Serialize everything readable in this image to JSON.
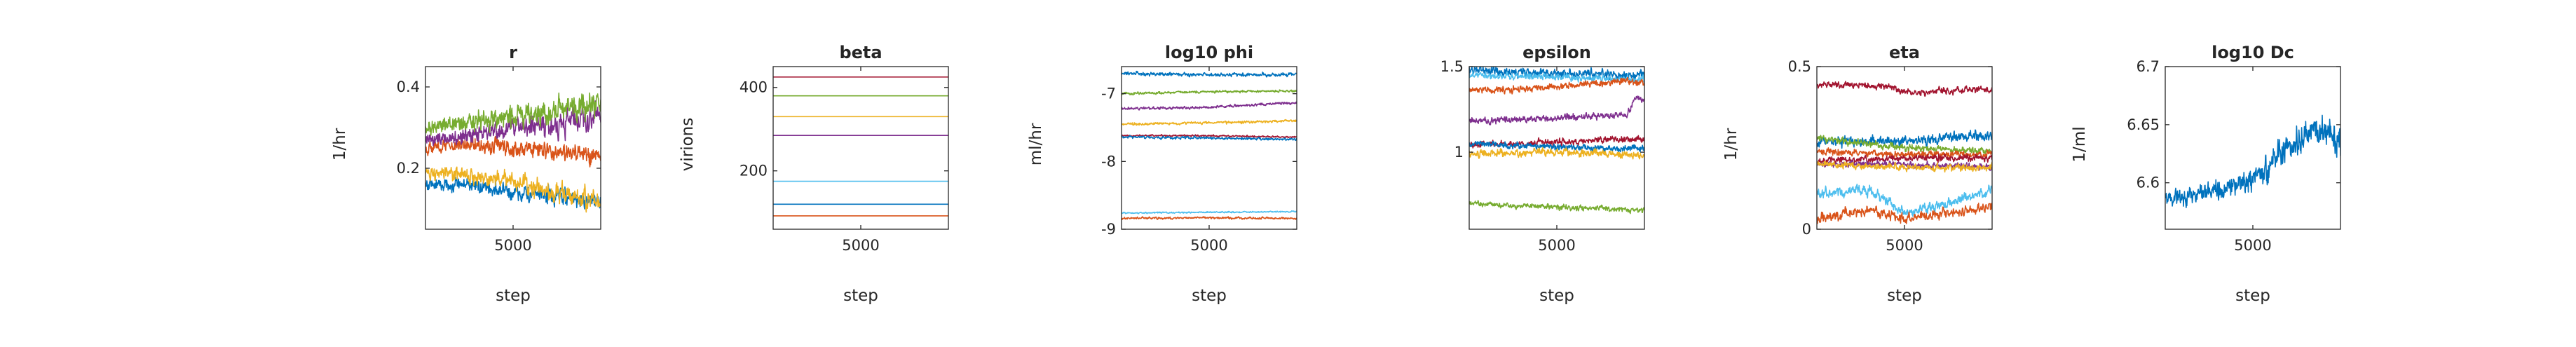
{
  "chart_data": [
    {
      "type": "line",
      "title": "r",
      "xlabel": "step",
      "ylabel": "1/hr",
      "xlim": [
        1,
        10000
      ],
      "ylim": [
        0.05,
        0.45
      ],
      "xticks": [
        5000
      ],
      "yticks": [
        0.2,
        0.4
      ],
      "xtick_labels": [
        "5000"
      ],
      "ytick_labels": [
        "0.2",
        "0.4"
      ],
      "series": [
        {
          "color": "#0072BD",
          "x": [
            1,
            2500,
            5000,
            7500,
            10000
          ],
          "values": [
            0.16,
            0.16,
            0.14,
            0.13,
            0.12
          ],
          "noise": 0.012,
          "noise_growth": 0.6
        },
        {
          "color": "#D95319",
          "x": [
            1,
            2500,
            5000,
            7500,
            10000
          ],
          "values": [
            0.25,
            0.26,
            0.25,
            0.24,
            0.23
          ],
          "noise": 0.012,
          "noise_growth": 0.6
        },
        {
          "color": "#EDB120",
          "x": [
            1,
            2500,
            5000,
            7500,
            10000
          ],
          "values": [
            0.19,
            0.18,
            0.17,
            0.14,
            0.12
          ],
          "noise": 0.012,
          "noise_growth": 0.8
        },
        {
          "color": "#7E2F8E",
          "x": [
            1,
            2500,
            5000,
            7500,
            10000
          ],
          "values": [
            0.27,
            0.28,
            0.3,
            0.31,
            0.33
          ],
          "noise": 0.014,
          "noise_growth": 0.8
        },
        {
          "color": "#77AC30",
          "x": [
            1,
            2500,
            5000,
            7500,
            10000
          ],
          "values": [
            0.3,
            0.31,
            0.33,
            0.34,
            0.36
          ],
          "noise": 0.015,
          "noise_growth": 0.8
        }
      ]
    },
    {
      "type": "line",
      "title": "beta",
      "xlabel": "step",
      "ylabel": "virions",
      "xlim": [
        1,
        10000
      ],
      "ylim": [
        60,
        450
      ],
      "xticks": [
        5000
      ],
      "yticks": [
        200,
        400
      ],
      "xtick_labels": [
        "5000"
      ],
      "ytick_labels": [
        "200",
        "400"
      ],
      "series": [
        {
          "color": "#A2142F",
          "x": [
            1,
            10000
          ],
          "values": [
            425,
            425
          ],
          "noise": 0
        },
        {
          "color": "#77AC30",
          "x": [
            1,
            10000
          ],
          "values": [
            380,
            380
          ],
          "noise": 0
        },
        {
          "color": "#EDB120",
          "x": [
            1,
            10000
          ],
          "values": [
            330,
            330
          ],
          "noise": 0
        },
        {
          "color": "#7E2F8E",
          "x": [
            1,
            10000
          ],
          "values": [
            285,
            285
          ],
          "noise": 0
        },
        {
          "color": "#4DBEEE",
          "x": [
            1,
            10000
          ],
          "values": [
            175,
            175
          ],
          "noise": 0
        },
        {
          "color": "#0072BD",
          "x": [
            1,
            10000
          ],
          "values": [
            120,
            120
          ],
          "noise": 0
        },
        {
          "color": "#D95319",
          "x": [
            1,
            10000
          ],
          "values": [
            92,
            92
          ],
          "noise": 0
        }
      ]
    },
    {
      "type": "line",
      "title": "log10 phi",
      "xlabel": "step",
      "ylabel": "ml/hr",
      "xlim": [
        1,
        10000
      ],
      "ylim": [
        -9,
        -6.6
      ],
      "xticks": [
        5000
      ],
      "yticks": [
        -9,
        -8,
        -7
      ],
      "xtick_labels": [
        "5000"
      ],
      "ytick_labels": [
        "-9",
        "-8",
        "-7"
      ],
      "series": [
        {
          "color": "#0072BD",
          "x": [
            1,
            5000,
            10000
          ],
          "values": [
            -6.7,
            -6.72,
            -6.72
          ],
          "noise": 0.02
        },
        {
          "color": "#77AC30",
          "x": [
            1,
            5000,
            10000
          ],
          "values": [
            -7.0,
            -6.97,
            -6.96
          ],
          "noise": 0.015
        },
        {
          "color": "#7E2F8E",
          "x": [
            1,
            5000,
            10000
          ],
          "values": [
            -7.22,
            -7.2,
            -7.13
          ],
          "noise": 0.015
        },
        {
          "color": "#EDB120",
          "x": [
            1,
            5000,
            10000
          ],
          "values": [
            -7.45,
            -7.43,
            -7.4
          ],
          "noise": 0.015
        },
        {
          "color": "#A2142F",
          "x": [
            1,
            5000,
            10000
          ],
          "values": [
            -7.62,
            -7.62,
            -7.64
          ],
          "noise": 0.01
        },
        {
          "color": "#0072BD",
          "x": [
            1,
            5000,
            10000
          ],
          "values": [
            -7.64,
            -7.65,
            -7.68
          ],
          "noise": 0.015
        },
        {
          "color": "#4DBEEE",
          "x": [
            1,
            5000,
            10000
          ],
          "values": [
            -8.76,
            -8.75,
            -8.74
          ],
          "noise": 0.008
        },
        {
          "color": "#D95319",
          "x": [
            1,
            5000,
            10000
          ],
          "values": [
            -8.84,
            -8.83,
            -8.84
          ],
          "noise": 0.012
        }
      ]
    },
    {
      "type": "line",
      "title": "epsilon",
      "xlabel": "step",
      "ylabel": "",
      "xlim": [
        1,
        10000
      ],
      "ylim": [
        0.55,
        1.5
      ],
      "xticks": [
        5000
      ],
      "yticks": [
        1,
        1.5
      ],
      "xtick_labels": [
        "5000"
      ],
      "ytick_labels": [
        "1",
        "1.5"
      ],
      "series": [
        {
          "color": "#0072BD",
          "x": [
            1,
            5000,
            10000
          ],
          "values": [
            1.48,
            1.46,
            1.45
          ],
          "noise": 0.02
        },
        {
          "color": "#4DBEEE",
          "x": [
            1,
            5000,
            10000
          ],
          "values": [
            1.45,
            1.44,
            1.42
          ],
          "noise": 0.015
        },
        {
          "color": "#D95319",
          "x": [
            1,
            5000,
            9000,
            10000
          ],
          "values": [
            1.36,
            1.38,
            1.42,
            1.4
          ],
          "noise": 0.015
        },
        {
          "color": "#7E2F8E",
          "x": [
            1,
            5000,
            9000,
            9500,
            10000
          ],
          "values": [
            1.18,
            1.2,
            1.22,
            1.32,
            1.3
          ],
          "noise": 0.015
        },
        {
          "color": "#A2142F",
          "x": [
            1,
            5000,
            10000
          ],
          "values": [
            1.04,
            1.06,
            1.08
          ],
          "noise": 0.015
        },
        {
          "color": "#0072BD",
          "x": [
            1,
            5000,
            10000
          ],
          "values": [
            1.05,
            1.03,
            1.02
          ],
          "noise": 0.015
        },
        {
          "color": "#EDB120",
          "x": [
            1,
            5000,
            10000
          ],
          "values": [
            0.99,
            1.0,
            0.98
          ],
          "noise": 0.018
        },
        {
          "color": "#77AC30",
          "x": [
            1,
            5000,
            10000
          ],
          "values": [
            0.7,
            0.68,
            0.66
          ],
          "noise": 0.012
        }
      ]
    },
    {
      "type": "line",
      "title": "eta",
      "xlabel": "step",
      "ylabel": "1/hr",
      "xlim": [
        1,
        10000
      ],
      "ylim": [
        0,
        0.5
      ],
      "xticks": [
        5000
      ],
      "yticks": [
        0,
        0.5
      ],
      "xtick_labels": [
        "5000"
      ],
      "ytick_labels": [
        "0",
        "0.5"
      ],
      "series": [
        {
          "color": "#A2142F",
          "x": [
            1,
            4000,
            5000,
            10000
          ],
          "values": [
            0.445,
            0.44,
            0.42,
            0.43
          ],
          "noise": 0.008
        },
        {
          "color": "#0072BD",
          "x": [
            1,
            5000,
            10000
          ],
          "values": [
            0.27,
            0.27,
            0.29
          ],
          "noise": 0.012
        },
        {
          "color": "#77AC30",
          "x": [
            1,
            5000,
            10000
          ],
          "values": [
            0.28,
            0.25,
            0.24
          ],
          "noise": 0.008
        },
        {
          "color": "#D95319",
          "x": [
            1,
            5000,
            10000
          ],
          "values": [
            0.24,
            0.23,
            0.23
          ],
          "noise": 0.008
        },
        {
          "color": "#A2142F",
          "x": [
            1,
            5000,
            10000
          ],
          "values": [
            0.21,
            0.22,
            0.22
          ],
          "noise": 0.008
        },
        {
          "color": "#7E2F8E",
          "x": [
            1,
            5000,
            10000
          ],
          "values": [
            0.2,
            0.2,
            0.19
          ],
          "noise": 0.008
        },
        {
          "color": "#EDB120",
          "x": [
            1,
            5000,
            10000
          ],
          "values": [
            0.2,
            0.19,
            0.19
          ],
          "noise": 0.008
        },
        {
          "color": "#4DBEEE",
          "x": [
            1,
            3000,
            5000,
            7500,
            10000
          ],
          "values": [
            0.11,
            0.12,
            0.05,
            0.08,
            0.12
          ],
          "noise": 0.012
        },
        {
          "color": "#D95319",
          "x": [
            1,
            3000,
            5000,
            7500,
            10000
          ],
          "values": [
            0.03,
            0.06,
            0.03,
            0.05,
            0.07
          ],
          "noise": 0.012
        }
      ]
    },
    {
      "type": "line",
      "title": "log10 Dc",
      "xlabel": "step",
      "ylabel": "1/ml",
      "xlim": [
        1,
        10000
      ],
      "ylim": [
        6.56,
        6.7
      ],
      "xticks": [
        5000
      ],
      "yticks": [
        6.6,
        6.65,
        6.7
      ],
      "xtick_labels": [
        "5000"
      ],
      "ytick_labels": [
        "6.6",
        "6.65",
        "6.7"
      ],
      "series": [
        {
          "color": "#0072BD",
          "x": [
            1,
            2000,
            3500,
            4500,
            5500,
            6500,
            7500,
            8500,
            10000
          ],
          "values": [
            6.586,
            6.59,
            6.595,
            6.6,
            6.61,
            6.625,
            6.635,
            6.645,
            6.64
          ],
          "noise": 0.005,
          "noise_growth": 1.6
        }
      ]
    }
  ]
}
